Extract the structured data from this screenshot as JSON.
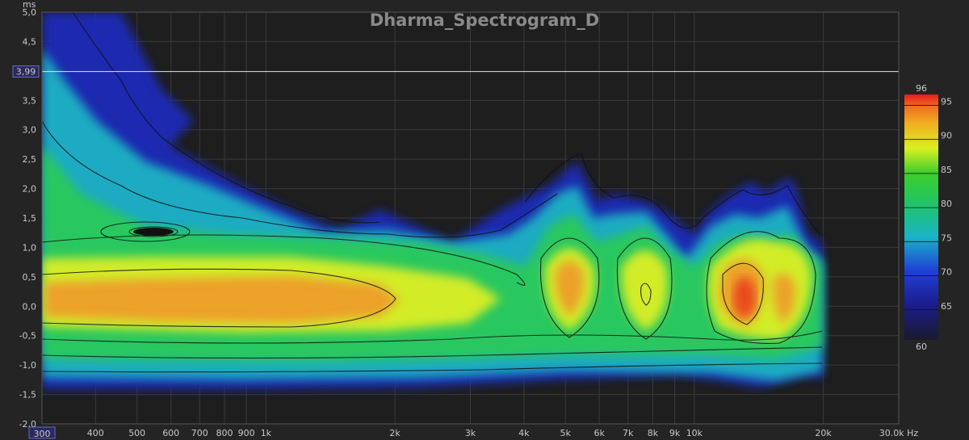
{
  "chart_data": {
    "type": "heatmap",
    "title": "Dharma_Spectrogram_D",
    "xlabel": "Hz",
    "ylabel": "ms",
    "x_scale": "log",
    "xlim": [
      300,
      30000
    ],
    "ylim": [
      -2.0,
      5.0
    ],
    "x_ticks": [
      {
        "value": 300,
        "label": "300",
        "highlight": true
      },
      {
        "value": 400,
        "label": "400"
      },
      {
        "value": 500,
        "label": "500"
      },
      {
        "value": 600,
        "label": "600"
      },
      {
        "value": 700,
        "label": "700"
      },
      {
        "value": 800,
        "label": "800"
      },
      {
        "value": 900,
        "label": "900"
      },
      {
        "value": 1000,
        "label": "1k"
      },
      {
        "value": 2000,
        "label": "2k"
      },
      {
        "value": 3000,
        "label": "3k"
      },
      {
        "value": 4000,
        "label": "4k"
      },
      {
        "value": 5000,
        "label": "5k"
      },
      {
        "value": 6000,
        "label": "6k"
      },
      {
        "value": 7000,
        "label": "7k"
      },
      {
        "value": 8000,
        "label": "8k"
      },
      {
        "value": 9000,
        "label": "9k"
      },
      {
        "value": 10000,
        "label": "10k"
      },
      {
        "value": 20000,
        "label": "20k"
      },
      {
        "value": 30000,
        "label": "30.0k Hz"
      }
    ],
    "y_ticks": [
      {
        "value": 5.0,
        "label": "5,0"
      },
      {
        "value": 4.5,
        "label": "4,5"
      },
      {
        "value": 3.5,
        "label": "3,5"
      },
      {
        "value": 3.0,
        "label": "3,0"
      },
      {
        "value": 2.5,
        "label": "2,5"
      },
      {
        "value": 2.0,
        "label": "2,0"
      },
      {
        "value": 1.5,
        "label": "1,5"
      },
      {
        "value": 1.0,
        "label": "1,0"
      },
      {
        "value": 0.5,
        "label": "0,5"
      },
      {
        "value": 0.0,
        "label": "0,0"
      },
      {
        "value": -0.5,
        "label": "-0,5"
      },
      {
        "value": -1.0,
        "label": "-1,0"
      },
      {
        "value": -1.5,
        "label": "-1,5"
      },
      {
        "value": -2.0,
        "label": "-2,0"
      }
    ],
    "y_axis_unit_label": "ms",
    "cursor": {
      "value": 3.99,
      "label": "3,99"
    },
    "colorbar": {
      "min": 60,
      "max": 96,
      "ticks": [
        {
          "value": 96,
          "label": "96"
        },
        {
          "value": 95,
          "label": "95"
        },
        {
          "value": 90,
          "label": "90"
        },
        {
          "value": 85,
          "label": "85"
        },
        {
          "value": 80,
          "label": "80"
        },
        {
          "value": 75,
          "label": "75"
        },
        {
          "value": 70,
          "label": "70"
        },
        {
          "value": 65,
          "label": "65"
        },
        {
          "value": 60,
          "label": "60"
        }
      ]
    },
    "grid": true,
    "peaks": [
      {
        "freq": 500,
        "time": 0.2,
        "level": 88,
        "time_width": 0.7
      },
      {
        "freq": 900,
        "time": 0.1,
        "level": 90,
        "time_width": 0.55
      },
      {
        "freq": 1500,
        "time": 0.05,
        "level": 89,
        "time_width": 0.5
      },
      {
        "freq": 5200,
        "time": 0.3,
        "level": 91,
        "time_width": 0.7
      },
      {
        "freq": 7700,
        "time": 0.2,
        "level": 89,
        "time_width": 0.75
      },
      {
        "freq": 13500,
        "time": 0.15,
        "level": 95,
        "time_width": 0.65
      },
      {
        "freq": 16000,
        "time": 0.1,
        "level": 92,
        "time_width": 0.7
      }
    ]
  }
}
